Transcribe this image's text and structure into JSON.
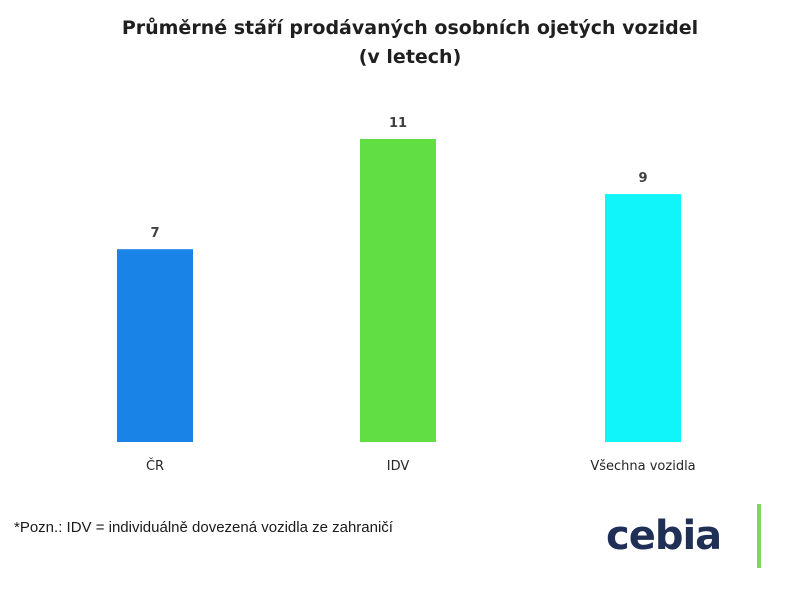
{
  "chart_data": {
    "type": "bar",
    "title_lines": [
      "Průměrné stáří prodávaných osobních ojetých vozidel",
      "(v letech)"
    ],
    "categories": [
      "ČR",
      "IDV",
      "Všechna vozidla"
    ],
    "values": [
      7,
      11,
      9
    ],
    "colors": [
      "#1a83e8",
      "#62de45",
      "#0ff5fa"
    ],
    "ylim": [
      0,
      11
    ],
    "grid": false,
    "legend": "none"
  },
  "footnote": "*Pozn.: IDV = individuálně dovezená vozidla ze zahraničí",
  "logo": {
    "text": "cebia",
    "bar_color": "#7ed957",
    "text_color": "#1f2f56"
  }
}
